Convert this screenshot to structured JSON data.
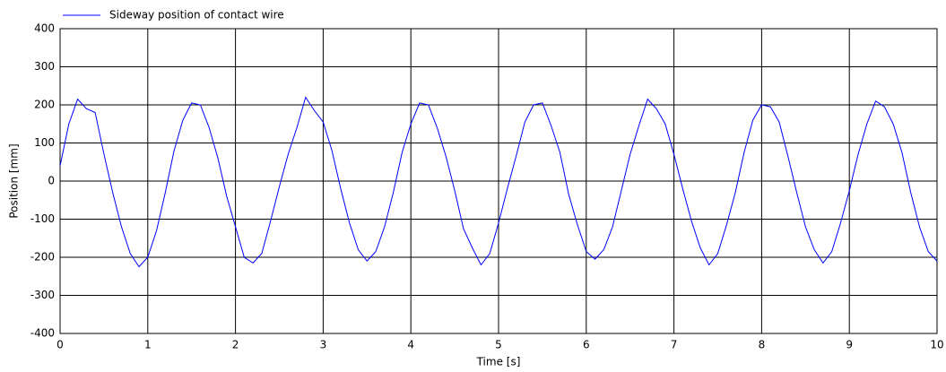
{
  "chart_data": {
    "type": "line",
    "xlabel": "Time [s]",
    "ylabel": "Position [mm]",
    "x": [
      0,
      0.1,
      0.2,
      0.3,
      0.4,
      0.5,
      0.6,
      0.7,
      0.8,
      0.9,
      1,
      1.1,
      1.2,
      1.3,
      1.4,
      1.5,
      1.6,
      1.7,
      1.8,
      1.9,
      2,
      2.1,
      2.2,
      2.3,
      2.4,
      2.5,
      2.6,
      2.7,
      2.8,
      2.9,
      3,
      3.1,
      3.2,
      3.3,
      3.4,
      3.5,
      3.6,
      3.7,
      3.8,
      3.9,
      4,
      4.1,
      4.2,
      4.3,
      4.4,
      4.5,
      4.6,
      4.7,
      4.8,
      4.9,
      5,
      5.1,
      5.2,
      5.3,
      5.4,
      5.5,
      5.6,
      5.7,
      5.8,
      5.9,
      6,
      6.1,
      6.2,
      6.3,
      6.4,
      6.5,
      6.6,
      6.7,
      6.8,
      6.9,
      7,
      7.1,
      7.2,
      7.3,
      7.4,
      7.5,
      7.6,
      7.7,
      7.8,
      7.9,
      8,
      8.1,
      8.2,
      8.3,
      8.4,
      8.5,
      8.6,
      8.7,
      8.8,
      8.9,
      9,
      9.1,
      9.2,
      9.3,
      9.4,
      9.5,
      9.6,
      9.7,
      9.8,
      9.9,
      10
    ],
    "series": [
      {
        "name": "Sideway position of contact wire",
        "color": "#0000ff",
        "values": [
          40,
          150,
          215,
          190,
          180,
          71,
          -30,
          -120,
          -190,
          -225,
          -200,
          -130,
          -30,
          80,
          160,
          205,
          200,
          140,
          60,
          -40,
          -120,
          -200,
          -215,
          -190,
          -105,
          -15,
          70,
          140,
          220,
          185,
          155,
          80,
          -20,
          -110,
          -180,
          -210,
          -185,
          -120,
          -30,
          75,
          150,
          205,
          200,
          140,
          65,
          -25,
          -125,
          -175,
          -220,
          -190,
          -110,
          -20,
          65,
          155,
          200,
          205,
          145,
          75,
          -35,
          -115,
          -185,
          -205,
          -180,
          -120,
          -25,
          70,
          145,
          215,
          190,
          150,
          70,
          -20,
          -105,
          -175,
          -220,
          -190,
          -115,
          -30,
          75,
          160,
          200,
          195,
          155,
          65,
          -30,
          -120,
          -180,
          -215,
          -185,
          -110,
          -25,
          70,
          150,
          210,
          195,
          150,
          75,
          -30,
          -120,
          -185,
          -210
        ]
      }
    ],
    "xlim": [
      0,
      10
    ],
    "xticks": [
      0,
      1,
      2,
      3,
      4,
      5,
      6,
      7,
      8,
      9,
      10
    ],
    "ylim": [
      -400,
      400
    ],
    "yticks": [
      -400,
      -300,
      -200,
      -100,
      0,
      100,
      200,
      300,
      400
    ],
    "grid": true,
    "legend": "top-left"
  }
}
